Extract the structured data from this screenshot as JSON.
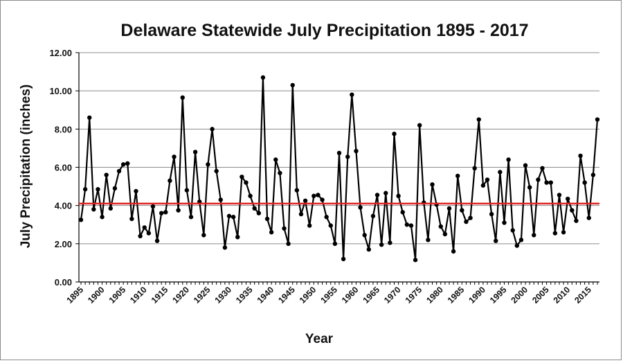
{
  "chart_data": {
    "type": "line",
    "title": "Delaware Statewide July Precipitation 1895 - 2017",
    "xlabel": "Year",
    "ylabel": "July Precipitation (inches)",
    "ylim": [
      0,
      12
    ],
    "yticks": [
      "0.00",
      "2.00",
      "4.00",
      "6.00",
      "8.00",
      "10.00",
      "12.00"
    ],
    "xticks": [
      "1895",
      "1900",
      "1905",
      "1910",
      "1915",
      "1920",
      "1925",
      "1930",
      "1935",
      "1940",
      "1945",
      "1950",
      "1955",
      "1960",
      "1965",
      "1970",
      "1975",
      "1980",
      "1985",
      "1990",
      "1995",
      "2000",
      "2005",
      "2010",
      "2015"
    ],
    "grid": true,
    "legend": "none",
    "line_color": "#000000",
    "reference_line": {
      "value": 4.1,
      "color": "#e02020"
    },
    "x": [
      1895,
      1896,
      1897,
      1898,
      1899,
      1900,
      1901,
      1902,
      1903,
      1904,
      1905,
      1906,
      1907,
      1908,
      1909,
      1910,
      1911,
      1912,
      1913,
      1914,
      1915,
      1916,
      1917,
      1918,
      1919,
      1920,
      1921,
      1922,
      1923,
      1924,
      1925,
      1926,
      1927,
      1928,
      1929,
      1930,
      1931,
      1932,
      1933,
      1934,
      1935,
      1936,
      1937,
      1938,
      1939,
      1940,
      1941,
      1942,
      1943,
      1944,
      1945,
      1946,
      1947,
      1948,
      1949,
      1950,
      1951,
      1952,
      1953,
      1954,
      1955,
      1956,
      1957,
      1958,
      1959,
      1960,
      1961,
      1962,
      1963,
      1964,
      1965,
      1966,
      1967,
      1968,
      1969,
      1970,
      1971,
      1972,
      1973,
      1974,
      1975,
      1976,
      1977,
      1978,
      1979,
      1980,
      1981,
      1982,
      1983,
      1984,
      1985,
      1986,
      1987,
      1988,
      1989,
      1990,
      1991,
      1992,
      1993,
      1994,
      1995,
      1996,
      1997,
      1998,
      1999,
      2000,
      2001,
      2002,
      2003,
      2004,
      2005,
      2006,
      2007,
      2008,
      2009,
      2010,
      2011,
      2012,
      2013,
      2014,
      2015,
      2016,
      2017
    ],
    "values": [
      3.25,
      4.85,
      8.6,
      3.8,
      4.85,
      3.4,
      5.6,
      3.85,
      4.9,
      5.8,
      6.15,
      6.2,
      3.3,
      4.75,
      2.4,
      2.85,
      2.55,
      3.95,
      2.15,
      3.6,
      3.65,
      5.3,
      6.55,
      3.75,
      9.65,
      4.8,
      3.4,
      6.8,
      4.2,
      2.45,
      6.15,
      8.0,
      5.8,
      4.3,
      1.8,
      3.45,
      3.4,
      2.35,
      5.5,
      5.2,
      4.5,
      3.85,
      3.6,
      10.7,
      3.3,
      2.6,
      6.4,
      5.7,
      2.8,
      2.0,
      10.3,
      4.8,
      3.55,
      4.25,
      2.95,
      4.5,
      4.55,
      4.3,
      3.4,
      2.95,
      2.0,
      6.75,
      1.2,
      6.55,
      9.8,
      6.85,
      3.9,
      2.45,
      1.7,
      3.45,
      4.55,
      1.95,
      4.65,
      2.05,
      7.75,
      4.5,
      3.65,
      3.0,
      2.95,
      1.15,
      8.2,
      4.15,
      2.2,
      5.1,
      4.05,
      2.9,
      2.5,
      3.85,
      1.6,
      5.55,
      3.75,
      3.15,
      3.35,
      5.95,
      8.5,
      5.05,
      5.35,
      3.55,
      2.15,
      5.75,
      3.1,
      6.4,
      2.7,
      1.9,
      2.2,
      6.1,
      4.95,
      2.45,
      5.35,
      5.95,
      5.2,
      5.2,
      2.55,
      4.55,
      2.6,
      4.35,
      3.75,
      3.2,
      6.6,
      5.2,
      3.35,
      5.6,
      8.5
    ]
  }
}
